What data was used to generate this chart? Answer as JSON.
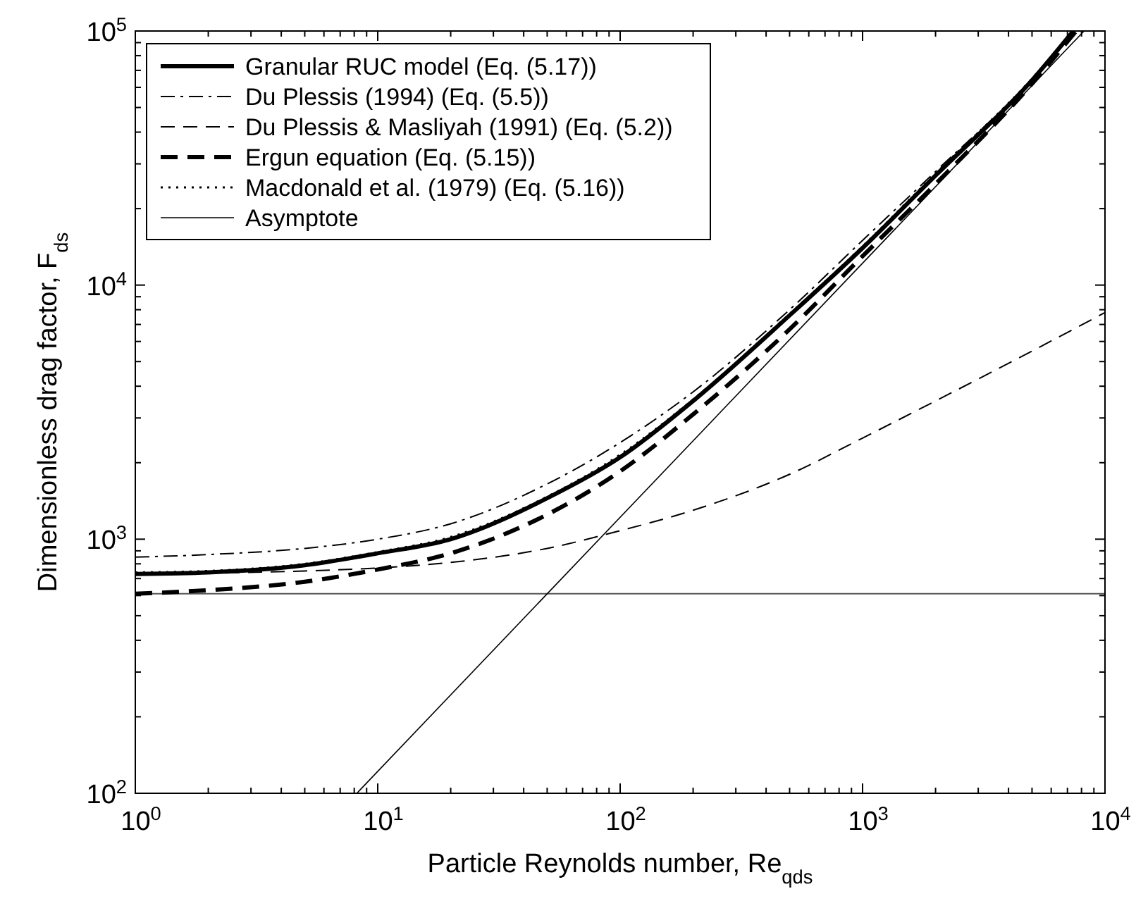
{
  "chart_data": {
    "type": "line",
    "xlabel": "Particle Reynolds number,  Re$_{qds}$",
    "ylabel": "Dimensionless drag factor,  F$_{ds}$",
    "log": "xy",
    "grid": false,
    "legend": "top left",
    "xlim": [
      1,
      10000
    ],
    "ylim": [
      100,
      100000
    ],
    "xticks": [
      {
        "value": 1,
        "label": "10$^{0}$"
      },
      {
        "value": 2,
        "label": null
      },
      {
        "value": 3,
        "label": null
      },
      {
        "value": 4,
        "label": null
      },
      {
        "value": 5,
        "label": null
      },
      {
        "value": 6,
        "label": null
      },
      {
        "value": 7,
        "label": null
      },
      {
        "value": 8,
        "label": null
      },
      {
        "value": 9,
        "label": null
      },
      {
        "value": 10,
        "label": "10$^{1}$"
      },
      {
        "value": 20,
        "label": null
      },
      {
        "value": 30,
        "label": null
      },
      {
        "value": 40,
        "label": null
      },
      {
        "value": 50,
        "label": null
      },
      {
        "value": 60,
        "label": null
      },
      {
        "value": 70,
        "label": null
      },
      {
        "value": 80,
        "label": null
      },
      {
        "value": 90,
        "label": null
      },
      {
        "value": 100,
        "label": "10$^{2}$"
      },
      {
        "value": 200,
        "label": null
      },
      {
        "value": 300,
        "label": null
      },
      {
        "value": 400,
        "label": null
      },
      {
        "value": 500,
        "label": null
      },
      {
        "value": 600,
        "label": null
      },
      {
        "value": 700,
        "label": null
      },
      {
        "value": 800,
        "label": null
      },
      {
        "value": 900,
        "label": null
      },
      {
        "value": 1000,
        "label": "10$^{3}$"
      },
      {
        "value": 2000,
        "label": null
      },
      {
        "value": 3000,
        "label": null
      },
      {
        "value": 4000,
        "label": null
      },
      {
        "value": 5000,
        "label": null
      },
      {
        "value": 6000,
        "label": null
      },
      {
        "value": 7000,
        "label": null
      },
      {
        "value": 8000,
        "label": null
      },
      {
        "value": 9000,
        "label": null
      },
      {
        "value": 10000,
        "label": "10$^{4}$"
      }
    ],
    "yticks": [
      {
        "value": 100,
        "label": "10$^{2}$"
      },
      {
        "value": 200,
        "label": null
      },
      {
        "value": 300,
        "label": null
      },
      {
        "value": 400,
        "label": null
      },
      {
        "value": 500,
        "label": null
      },
      {
        "value": 600,
        "label": null
      },
      {
        "value": 700,
        "label": null
      },
      {
        "value": 800,
        "label": null
      },
      {
        "value": 900,
        "label": null
      },
      {
        "value": 1000,
        "label": "10$^{3}$"
      },
      {
        "value": 2000,
        "label": null
      },
      {
        "value": 3000,
        "label": null
      },
      {
        "value": 4000,
        "label": null
      },
      {
        "value": 5000,
        "label": null
      },
      {
        "value": 6000,
        "label": null
      },
      {
        "value": 7000,
        "label": null
      },
      {
        "value": 8000,
        "label": null
      },
      {
        "value": 9000,
        "label": null
      },
      {
        "value": 10000,
        "label": "10$^{4}$"
      },
      {
        "value": 20000,
        "label": null
      },
      {
        "value": 30000,
        "label": null
      },
      {
        "value": 40000,
        "label": null
      },
      {
        "value": 50000,
        "label": null
      },
      {
        "value": 60000,
        "label": null
      },
      {
        "value": 70000,
        "label": null
      },
      {
        "value": 80000,
        "label": null
      },
      {
        "value": 90000,
        "label": null
      },
      {
        "value": 100000,
        "label": "10$^{5}$"
      }
    ],
    "ref_lines": [
      {
        "axis": "y",
        "value": 610,
        "color": "#555555",
        "line_style": "solid"
      }
    ],
    "series": [
      {
        "name": "Granular RUC model (Eq. (5.17))",
        "color": "#000000",
        "line_style": "solid",
        "x": [
          1,
          2,
          5,
          10,
          20,
          50,
          100,
          200,
          500,
          1000,
          2000,
          5000,
          7400
        ],
        "values": [
          730,
          740,
          790,
          880,
          1000,
          1450,
          2100,
          3500,
          7600,
          14000,
          27000,
          64000,
          100000
        ]
      },
      {
        "name": "Du Plessis (1994) (Eq. (5.5))",
        "color": "#000000",
        "line_style": "dashdot",
        "x": [
          1,
          2,
          5,
          10,
          20,
          50,
          100,
          200,
          500,
          1000,
          2000,
          5000,
          7300
        ],
        "values": [
          850,
          870,
          920,
          1000,
          1150,
          1650,
          2400,
          3800,
          8000,
          15000,
          28000,
          65000,
          100000
        ]
      },
      {
        "name": "Du Plessis & Masliyah (1991) (Eq. (5.2))",
        "color": "#000000",
        "line_style": "dashed",
        "x": [
          1,
          2,
          5,
          10,
          20,
          50,
          100,
          200,
          500,
          1000,
          2000,
          5000,
          10000
        ],
        "values": [
          730,
          735,
          750,
          770,
          810,
          920,
          1080,
          1300,
          1800,
          2500,
          3500,
          5500,
          7800
        ]
      },
      {
        "name": "Ergun equation (Eq. (5.15))",
        "color": "#000000",
        "line_style": "dashed",
        "x": [
          1,
          2,
          5,
          10,
          20,
          50,
          100,
          200,
          500,
          1000,
          2000,
          5000,
          7600
        ],
        "values": [
          610,
          630,
          680,
          760,
          880,
          1250,
          1850,
          3100,
          6700,
          13000,
          25000,
          62000,
          100000
        ]
      },
      {
        "name": "Macdonald et al. (1979) (Eq. (5.16))",
        "color": "#000000",
        "line_style": "dotted",
        "x": [
          1,
          2,
          5,
          10,
          20,
          50,
          100,
          200,
          500,
          1000,
          2000,
          5000,
          7400
        ],
        "values": [
          740,
          750,
          800,
          890,
          1020,
          1470,
          2150,
          3550,
          7700,
          14200,
          27500,
          65000,
          100000
        ]
      },
      {
        "name": "Asymptote",
        "color": "#000000",
        "line_style": "solid",
        "x": [
          8.2,
          8200
        ],
        "values": [
          100,
          100000
        ]
      }
    ]
  }
}
